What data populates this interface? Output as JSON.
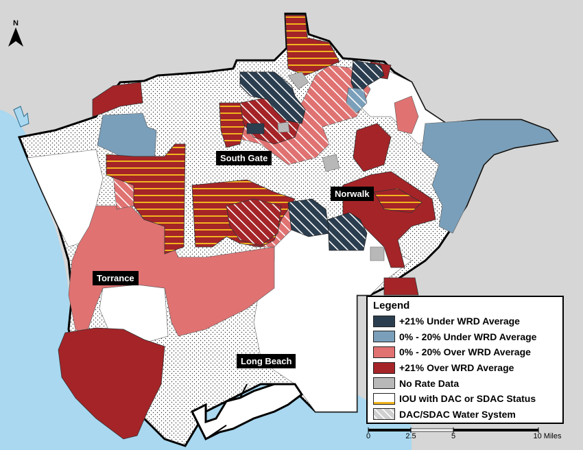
{
  "cities": [
    {
      "name": "South Gate"
    },
    {
      "name": "Norwalk"
    },
    {
      "name": "Torrance"
    },
    {
      "name": "Long Beach"
    }
  ],
  "legend": {
    "title": "Legend",
    "items": [
      {
        "label": "+21% Under WRD Average",
        "color": "#2b3e50"
      },
      {
        "label": "0% - 20% Under WRD Average",
        "color": "#7a9fba"
      },
      {
        "label": "0% - 20% Over WRD Average",
        "color": "#e07272"
      },
      {
        "label": "+21% Over WRD Average",
        "color": "#a42428"
      },
      {
        "label": "No Rate Data",
        "color": "#b8b8b8"
      },
      {
        "label": "IOU with DAC or SDAC Status",
        "color": "#ffffff",
        "pattern": "yellow-stripes"
      },
      {
        "label": "DAC/SDAC Water System",
        "color": "#d0d0d0",
        "pattern": "white-hatch"
      }
    ]
  },
  "scale": {
    "ticks": [
      "0",
      "2.5",
      "5",
      "10 Miles"
    ]
  },
  "north_arrow": {
    "label": "N"
  },
  "colors": {
    "ocean": "#a9d8f0",
    "land": "#d6d6d6",
    "no_system": "#ffffff",
    "boundary": "#000000"
  }
}
